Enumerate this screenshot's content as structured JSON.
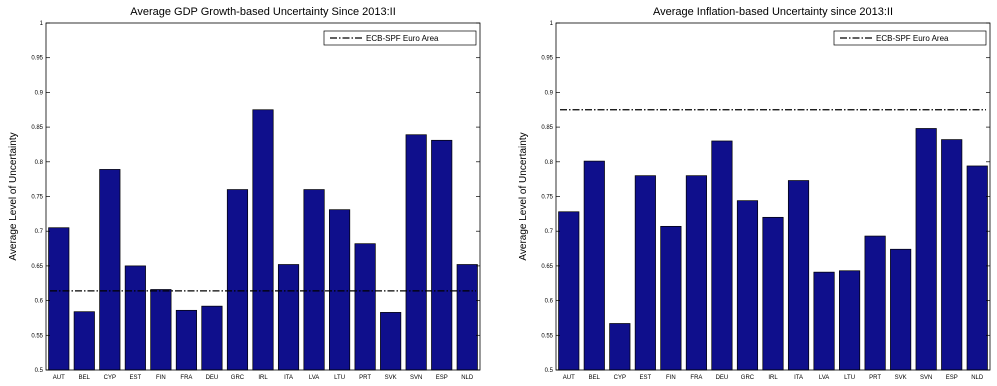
{
  "chart_data": [
    {
      "type": "bar",
      "title": "Average GDP Growth-based Uncertainty Since 2013:II",
      "xlabel": "",
      "ylabel": "Average Level of Uncertainty",
      "ylim": [
        0.5,
        1.0
      ],
      "yticks": [
        "0.5",
        "0.55",
        "0.6",
        "0.65",
        "0.7",
        "0.75",
        "0.8",
        "0.85",
        "0.9",
        "0.95",
        "1"
      ],
      "categories": [
        "AUT",
        "BEL",
        "CYP",
        "EST",
        "FIN",
        "FRA",
        "DEU",
        "GRC",
        "IRL",
        "ITA",
        "LVA",
        "LTU",
        "PRT",
        "SVK",
        "SVN",
        "ESP",
        "NLD"
      ],
      "values": [
        0.705,
        0.584,
        0.789,
        0.65,
        0.616,
        0.586,
        0.592,
        0.76,
        0.875,
        0.652,
        0.76,
        0.731,
        0.682,
        0.583,
        0.839,
        0.831,
        0.652
      ],
      "reference_line": {
        "label": "ECB-SPF Euro Area",
        "value": 0.614
      },
      "legend_position": "top-right",
      "bar_color": "#0f0f8c",
      "grid": false
    },
    {
      "type": "bar",
      "title": "Average Inflation-based Uncertainty since 2013:II",
      "xlabel": "",
      "ylabel": "Average Level of Uncertainty",
      "ylim": [
        0.5,
        1.0
      ],
      "yticks": [
        "0.5",
        "0.55",
        "0.6",
        "0.65",
        "0.7",
        "0.75",
        "0.8",
        "0.85",
        "0.9",
        "0.95",
        "1"
      ],
      "categories": [
        "AUT",
        "BEL",
        "CYP",
        "EST",
        "FIN",
        "FRA",
        "DEU",
        "GRC",
        "IRL",
        "ITA",
        "LVA",
        "LTU",
        "PRT",
        "SVK",
        "SVN",
        "ESP",
        "NLD"
      ],
      "values": [
        0.728,
        0.801,
        0.567,
        0.78,
        0.707,
        0.78,
        0.83,
        0.744,
        0.72,
        0.773,
        0.641,
        0.643,
        0.693,
        0.674,
        0.848,
        0.832,
        0.794
      ],
      "reference_line": {
        "label": "ECB-SPF Euro Area",
        "value": 0.875
      },
      "legend_position": "top-right",
      "bar_color": "#0f0f8c",
      "grid": false
    }
  ]
}
